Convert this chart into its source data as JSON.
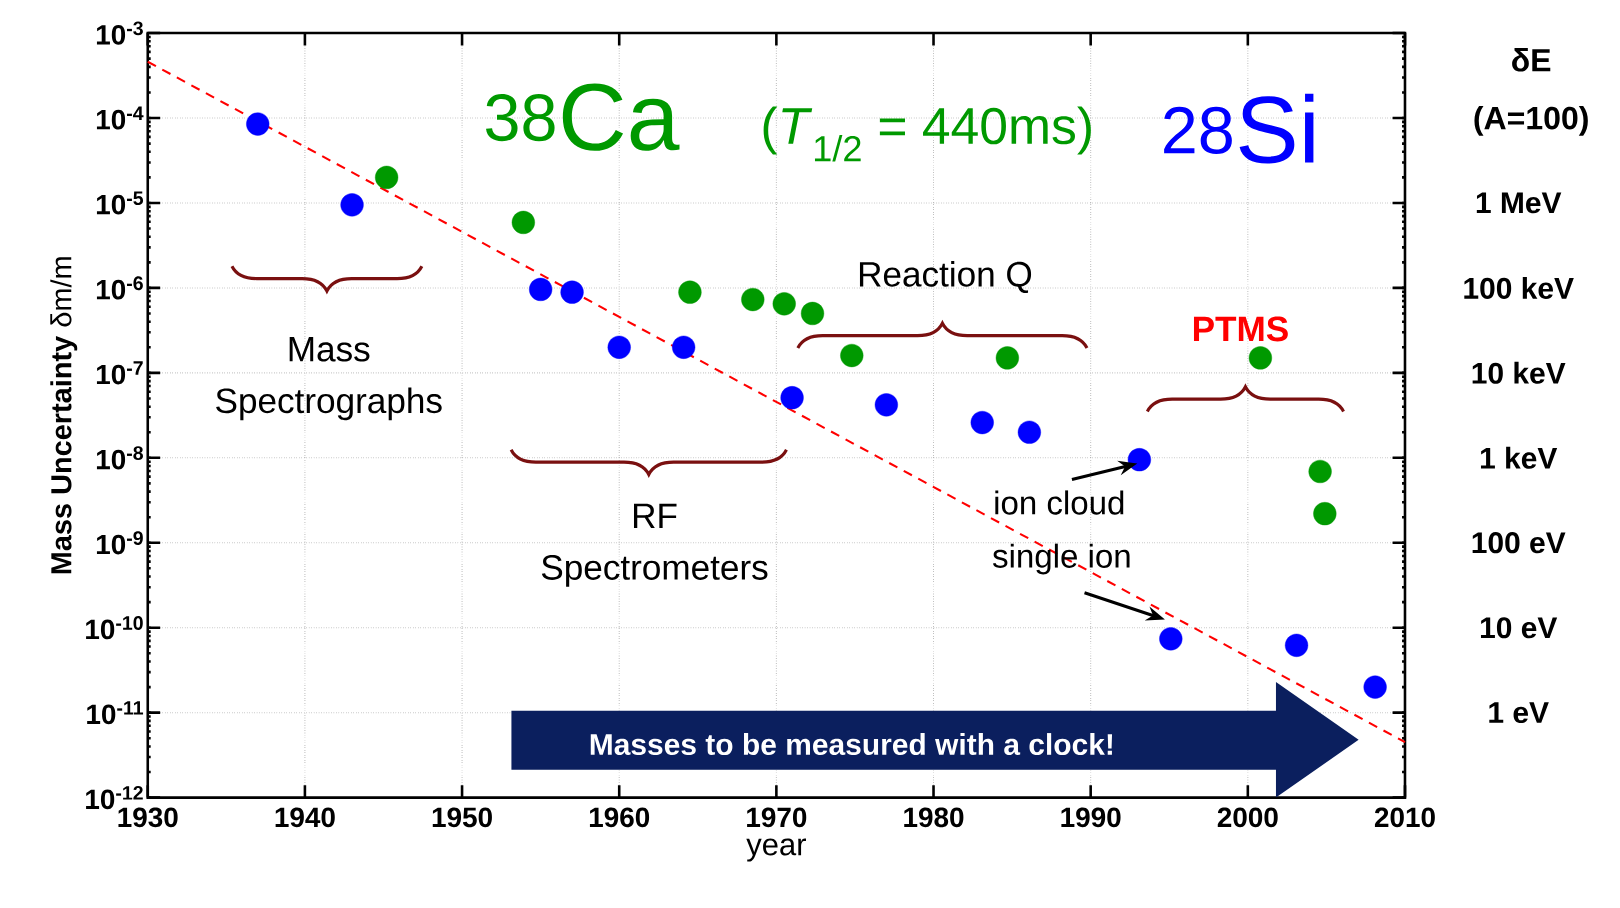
{
  "chart_data": {
    "type": "scatter",
    "xlabel": "year",
    "ylabel": "**Mass Uncertainty**  δm/m",
    "xlim": [
      1930,
      2010
    ],
    "xticks": [
      1930,
      1940,
      1950,
      1960,
      1970,
      1980,
      1990,
      2000,
      2010
    ],
    "ylim": [
      1e-12,
      0.001
    ],
    "yticks": [
      {
        "value": 1e-12,
        "label": "10$^{-12}$"
      },
      {
        "value": 1e-11,
        "label": "10$^{-11}$"
      },
      {
        "value": 1e-10,
        "label": "10$^{-10}$"
      },
      {
        "value": 1e-09,
        "label": "10$^{-9}$"
      },
      {
        "value": 1e-08,
        "label": "10$^{-8}$"
      },
      {
        "value": 1e-07,
        "label": "10$^{-7}$"
      },
      {
        "value": 1e-06,
        "label": "10$^{-6}$"
      },
      {
        "value": 1e-05,
        "label": "10$^{-5}$"
      },
      {
        "value": 0.0001,
        "label": "10$^{-4}$"
      },
      {
        "value": 0.001,
        "label": "10$^{-3}$"
      }
    ],
    "log": true,
    "grid": true,
    "marker": "circle",
    "series": [
      {
        "name": "$^{28}$Si",
        "color": "#0000ff",
        "x": [
          1937,
          1943,
          1955,
          1957,
          1960,
          1964.1,
          1971,
          1977,
          1983.1,
          1986.1,
          1993.1,
          1995.1,
          2003.1,
          2008.1
        ],
        "values": [
          8.5e-05,
          9.5e-06,
          9.6e-07,
          8.9e-07,
          2e-07,
          2e-07,
          5.1e-08,
          4.2e-08,
          2.6e-08,
          2e-08,
          9.5e-09,
          7.4e-11,
          6.2e-11,
          2e-11
        ]
      },
      {
        "name": "$^{38}$Ca",
        "color": "#009900",
        "x": [
          1945.2,
          1953.9,
          1964.5,
          1968.5,
          1970.5,
          1972.3,
          1974.8,
          1984.7,
          2000.8,
          2004.6,
          2004.9
        ],
        "values": [
          2e-05,
          5.9e-06,
          8.9e-07,
          7.3e-07,
          6.5e-07,
          5e-07,
          1.6e-07,
          1.5e-07,
          1.5e-07,
          6.9e-09,
          2.2e-09
        ]
      },
      {
        "type": "line",
        "color": "#ff0000",
        "line_style": "dashed",
        "marker": "none",
        "x": [
          1930,
          2010
        ],
        "values": [
          0.00046,
          4.5e-12
        ]
      }
    ],
    "annotations": [
      "(*T*$_{1/2}$ = 440ms)",
      "Mass Spectrographs",
      "RF Spectrometers",
      "Reaction Q",
      "PTMS",
      "ion cloud",
      "single ion",
      "Masses to be measured with a clock!",
      "δE (A=100)",
      "1 MeV",
      "100 keV",
      "10 keV",
      "1 keV",
      "100 eV",
      "10 eV",
      "1 eV"
    ]
  }
}
